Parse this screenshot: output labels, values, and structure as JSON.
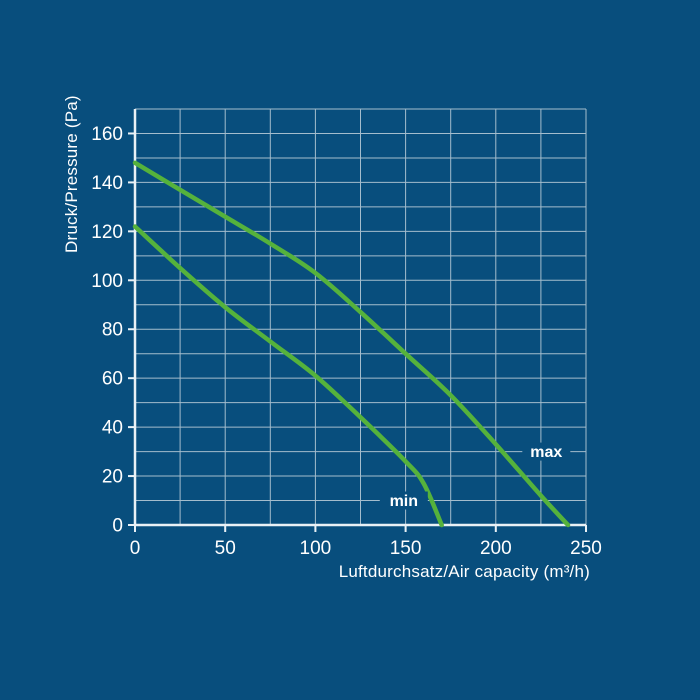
{
  "colors": {
    "background": "#084E7D",
    "grid_line": "#A4BDCD",
    "axis_line": "#E9F1F6",
    "tick_label": "#FFFFFF",
    "curve_green": "#55B23C"
  },
  "chart_data": {
    "type": "line",
    "title": "",
    "xlabel": "Luftdurchsatz/Air capacity (m³/h)",
    "ylabel": "Druck/Pressure (Pa)",
    "xlim": [
      0,
      250
    ],
    "ylim": [
      0,
      170
    ],
    "x_ticks": [
      0,
      50,
      100,
      150,
      200,
      250
    ],
    "y_ticks": [
      0,
      20,
      40,
      60,
      80,
      100,
      120,
      140,
      160
    ],
    "x_minor_step": 25,
    "y_minor_step": 10,
    "grid": true,
    "legend_position": "inline-labels",
    "series": [
      {
        "name": "max",
        "label": "max",
        "label_pos": [
          228,
          30
        ],
        "points": [
          [
            0,
            148
          ],
          [
            25,
            137
          ],
          [
            50,
            126
          ],
          [
            75,
            115
          ],
          [
            100,
            103
          ],
          [
            125,
            87
          ],
          [
            150,
            70
          ],
          [
            175,
            53
          ],
          [
            200,
            33
          ],
          [
            225,
            12
          ],
          [
            240,
            0
          ]
        ]
      },
      {
        "name": "min",
        "label": "min",
        "label_pos": [
          149,
          10
        ],
        "points": [
          [
            0,
            122
          ],
          [
            25,
            105
          ],
          [
            50,
            89
          ],
          [
            75,
            75
          ],
          [
            100,
            61
          ],
          [
            125,
            44
          ],
          [
            150,
            26
          ],
          [
            160,
            17
          ],
          [
            170,
            0
          ]
        ]
      }
    ]
  }
}
